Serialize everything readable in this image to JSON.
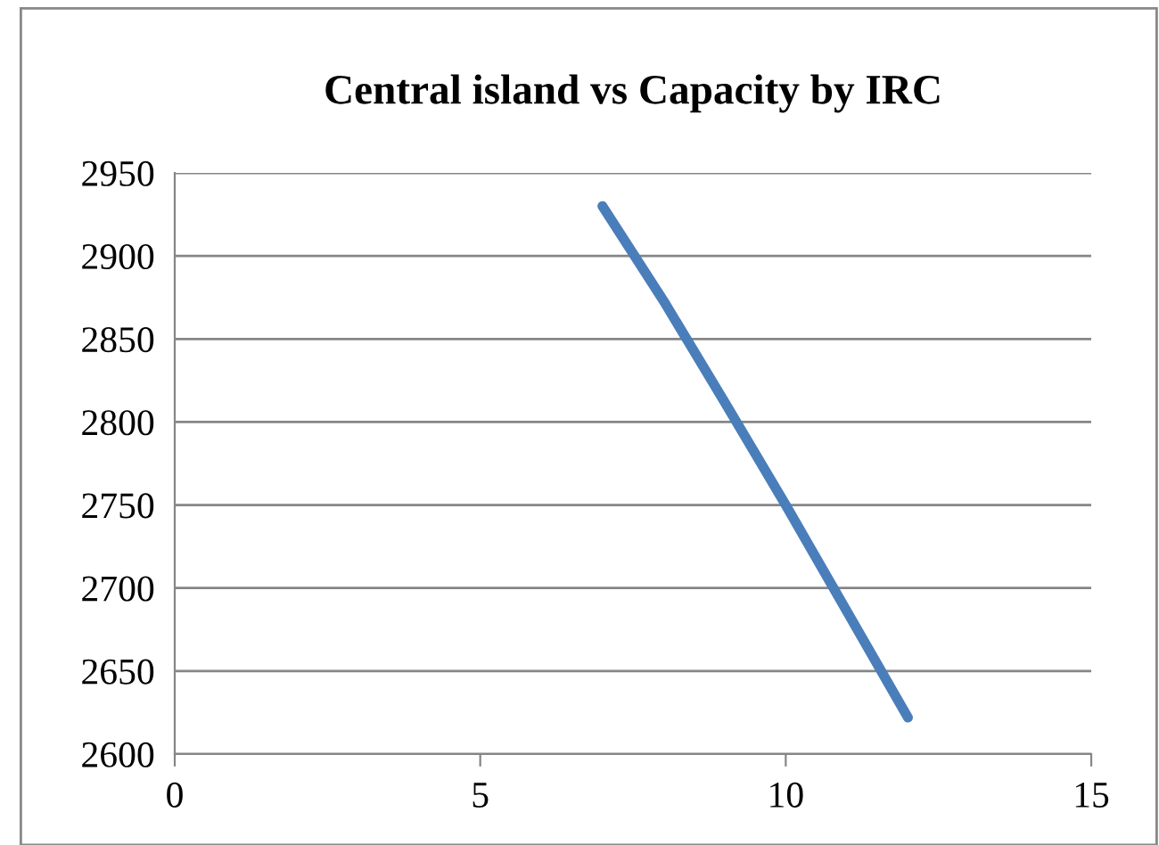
{
  "chart_data": {
    "type": "line",
    "title": "Central island vs Capacity by IRC",
    "x": [
      7,
      8,
      9,
      10,
      11,
      12
    ],
    "series": [
      {
        "color": "#4a7ebb",
        "values": [
          2930,
          2873,
          2812,
          2750,
          2686,
          2622
        ]
      }
    ],
    "xlim": [
      0,
      15
    ],
    "xticks": [
      0,
      5,
      10,
      15
    ],
    "ylim": [
      2600,
      2950
    ],
    "yticks": [
      2600,
      2650,
      2700,
      2750,
      2800,
      2850,
      2900,
      2950
    ],
    "grid": "y",
    "legend": false,
    "marker": "none",
    "line_style": "solid"
  }
}
